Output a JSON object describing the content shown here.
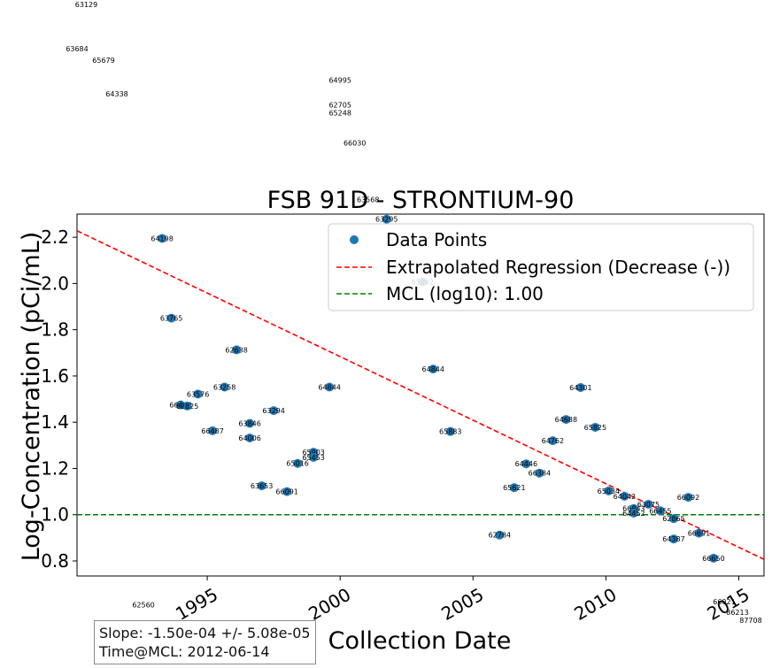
{
  "chart_data": {
    "type": "scatter",
    "title": "FSB 91D - STRONTIUM-90",
    "xlabel": "Collection Date",
    "ylabel": "Log-Concentration (pCi/mL)",
    "x_ticks": [
      "1995",
      "2000",
      "2005",
      "2010",
      "2015"
    ],
    "y_ticks": [
      "0.8",
      "1.0",
      "1.2",
      "1.4",
      "1.6",
      "1.8",
      "2.0",
      "2.2"
    ],
    "xlim": [
      1990.1,
      2015.95
    ],
    "ylim": [
      0.735,
      2.3
    ],
    "legend_position": "upper-right",
    "legend": [
      "Data Points",
      "Extrapolated Regression (Decrease (-))",
      "MCL (log10): 1.00"
    ],
    "colors": {
      "points": "#1f77b4",
      "regression": "#ff0000",
      "mcl": "#008000"
    },
    "series": [
      {
        "name": "Data Points",
        "points": [
          {
            "x": 1993.3,
            "y": 2.195,
            "label": "64198"
          },
          {
            "x": 1993.65,
            "y": 1.85,
            "label": "63765"
          },
          {
            "x": 1996.1,
            "y": 1.713,
            "label": "62638"
          },
          {
            "x": 1994.65,
            "y": 1.522,
            "label": "63576"
          },
          {
            "x": 1995.65,
            "y": 1.552,
            "label": "63258"
          },
          {
            "x": 1994.0,
            "y": 1.475,
            "label": "66463"
          },
          {
            "x": 1994.25,
            "y": 1.47,
            "label": "62825"
          },
          {
            "x": 1997.5,
            "y": 1.45,
            "label": "63294"
          },
          {
            "x": 1999.6,
            "y": 1.552,
            "label": "64844"
          },
          {
            "x": 1995.2,
            "y": 1.363,
            "label": "66487"
          },
          {
            "x": 1996.6,
            "y": 1.395,
            "label": "63846"
          },
          {
            "x": 1996.6,
            "y": 1.332,
            "label": "64006"
          },
          {
            "x": 1999.0,
            "y": 1.27,
            "label": "65903"
          },
          {
            "x": 1999.0,
            "y": 1.248,
            "label": "65453"
          },
          {
            "x": 1998.4,
            "y": 1.222,
            "label": "65016"
          },
          {
            "x": 1997.05,
            "y": 1.125,
            "label": "63653"
          },
          {
            "x": 1998.0,
            "y": 1.1,
            "label": "66091"
          },
          {
            "x": 2001.75,
            "y": 2.278,
            "label": "63295"
          },
          {
            "x": 2003.1,
            "y": 2.007,
            "label": "65992"
          },
          {
            "x": 2003.5,
            "y": 1.63,
            "label": "64844"
          },
          {
            "x": 2004.15,
            "y": 1.36,
            "label": "65883"
          },
          {
            "x": 2006.55,
            "y": 1.117,
            "label": "65621"
          },
          {
            "x": 2007.0,
            "y": 1.22,
            "label": "64446"
          },
          {
            "x": 2007.5,
            "y": 1.18,
            "label": "66384"
          },
          {
            "x": 2006.0,
            "y": 0.912,
            "label": "62784"
          },
          {
            "x": 2009.05,
            "y": 1.55,
            "label": "64301"
          },
          {
            "x": 2008.5,
            "y": 1.412,
            "label": "64688"
          },
          {
            "x": 2008.0,
            "y": 1.32,
            "label": "64762"
          },
          {
            "x": 2009.6,
            "y": 1.378,
            "label": "65825"
          },
          {
            "x": 2010.1,
            "y": 1.103,
            "label": "65034"
          },
          {
            "x": 2010.7,
            "y": 1.08,
            "label": "64042"
          },
          {
            "x": 2011.05,
            "y": 1.027,
            "label": "66843"
          },
          {
            "x": 2011.05,
            "y": 1.007,
            "label": "64452"
          },
          {
            "x": 2011.6,
            "y": 1.045,
            "label": "63075"
          },
          {
            "x": 2012.05,
            "y": 1.017,
            "label": "66455"
          },
          {
            "x": 2012.55,
            "y": 0.983,
            "label": "62865"
          },
          {
            "x": 2012.55,
            "y": 0.895,
            "label": "64387"
          },
          {
            "x": 2013.1,
            "y": 1.075,
            "label": "66092"
          },
          {
            "x": 2013.5,
            "y": 0.92,
            "label": "66691"
          },
          {
            "x": 2014.05,
            "y": 0.812,
            "label": "66650"
          }
        ]
      }
    ],
    "regression": {
      "name": "Extrapolated Regression (Decrease (-))",
      "x": [
        1990.1,
        2015.95
      ],
      "y": [
        2.228,
        0.807
      ]
    },
    "mcl": {
      "name": "MCL (log10): 1.00",
      "y": 1.0
    },
    "stray_labels": [
      {
        "text": "63129",
        "x": 1990.45,
        "y": 3.195
      },
      {
        "text": "63684",
        "x": 1990.1,
        "y": 3.005
      },
      {
        "text": "65679",
        "x": 1991.1,
        "y": 2.955
      },
      {
        "text": "64338",
        "x": 1991.6,
        "y": 2.808
      },
      {
        "text": "64995",
        "x": 2000.0,
        "y": 2.868
      },
      {
        "text": "62705",
        "x": 2000.0,
        "y": 2.762
      },
      {
        "text": "65248",
        "x": 2000.0,
        "y": 2.727
      },
      {
        "text": "66030",
        "x": 2000.55,
        "y": 2.597
      },
      {
        "text": "63568",
        "x": 2001.05,
        "y": 2.352
      },
      {
        "text": "62560",
        "x": 1992.6,
        "y": 0.6
      },
      {
        "text": "66021",
        "x": 2014.45,
        "y": 0.613
      },
      {
        "text": "86213",
        "x": 2014.95,
        "y": 0.567
      },
      {
        "text": "87708",
        "x": 2015.45,
        "y": 0.532
      }
    ]
  },
  "stats": {
    "slope": "Slope: -1.50e-04 +/- 5.08e-05",
    "time_mcl": "Time@MCL: 2012-06-14"
  }
}
